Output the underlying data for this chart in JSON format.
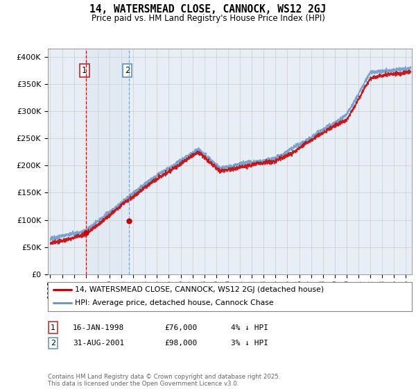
{
  "title": "14, WATERSMEAD CLOSE, CANNOCK, WS12 2GJ",
  "subtitle": "Price paid vs. HM Land Registry's House Price Index (HPI)",
  "ylabel_ticks": [
    "£0",
    "£50K",
    "£100K",
    "£150K",
    "£200K",
    "£250K",
    "£300K",
    "£350K",
    "£400K"
  ],
  "ytick_values": [
    0,
    50000,
    100000,
    150000,
    200000,
    250000,
    300000,
    350000,
    400000
  ],
  "ylim": [
    0,
    415000
  ],
  "xlim_start": 1994.8,
  "xlim_end": 2025.5,
  "sale1_date": 1998.04,
  "sale1_price": 76000,
  "sale2_date": 2001.66,
  "sale2_price": 98000,
  "legend_entry1": "14, WATERSMEAD CLOSE, CANNOCK, WS12 2GJ (detached house)",
  "legend_entry2": "HPI: Average price, detached house, Cannock Chase",
  "legend_color1": "#cc0000",
  "legend_color2": "#6699cc",
  "footer": "Contains HM Land Registry data © Crown copyright and database right 2025.\nThis data is licensed under the Open Government Licence v3.0.",
  "bg_color": "#ffffff",
  "grid_color": "#cccccc",
  "plot_bg": "#e8eef5",
  "fill_color": "#ccd9e8",
  "sale1_vline_color": "#cc0000",
  "sale2_vline_color": "#6699cc",
  "span_color": "#d0e0f0",
  "label1_edge": "#cc3333",
  "label2_edge": "#6699cc"
}
